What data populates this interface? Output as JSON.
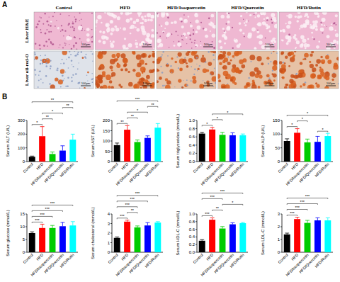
{
  "panel_a": {
    "label": "A",
    "columns": [
      "Control",
      "HFD",
      "HFD/Isoquercetin",
      "HFD/Quercetin",
      "HFD/Rutin"
    ],
    "rows": [
      "Liver H&E",
      "Liver oil-red-O"
    ],
    "scale_bar": "100μm"
  },
  "panel_b_label": "B",
  "chart_data": [
    {
      "type": "bar",
      "y_label": "Serum ALT (U/L)",
      "categories": [
        "Control",
        "HFD",
        "HFD/Isoquercetin",
        "HFD/Quercetin",
        "HFD/Rutin"
      ],
      "values": [
        35,
        185,
        55,
        80,
        160
      ],
      "errors": [
        5,
        70,
        15,
        35,
        40
      ],
      "colors": [
        "#000000",
        "#ff0000",
        "#00cc00",
        "#0000ff",
        "#00ffff"
      ],
      "ylim": [
        0,
        300
      ],
      "yticks": [
        0,
        100,
        200,
        300
      ],
      "significance": [
        {
          "pair": [
            "Control",
            "HFD"
          ],
          "label": "*"
        },
        {
          "pair": [
            "HFD",
            "HFD/Isoquercetin"
          ],
          "label": "**"
        },
        {
          "pair": [
            "HFD",
            "HFD/Quercetin"
          ],
          "label": "*"
        },
        {
          "pair": [
            "HFD/Quercetin",
            "HFD/Rutin"
          ],
          "label": "**"
        },
        {
          "pair": [
            "Control",
            "HFD/Rutin"
          ],
          "label": "**"
        }
      ]
    },
    {
      "type": "bar",
      "y_label": "Serum AST (U/L)",
      "categories": [
        "Control",
        "HFD",
        "HFD/Isoquercetin",
        "HFD/Quercetin",
        "HFD/Rutin"
      ],
      "values": [
        80,
        155,
        95,
        115,
        165
      ],
      "errors": [
        10,
        20,
        10,
        10,
        20
      ],
      "colors": [
        "#000000",
        "#ff0000",
        "#00cc00",
        "#0000ff",
        "#00ffff"
      ],
      "ylim": [
        0,
        200
      ],
      "yticks": [
        0,
        50,
        100,
        150,
        200
      ],
      "significance": [
        {
          "pair": [
            "Control",
            "HFD"
          ],
          "label": "**"
        },
        {
          "pair": [
            "HFD",
            "HFD/Isoquercetin"
          ],
          "label": "**"
        },
        {
          "pair": [
            "HFD",
            "HFD/Quercetin"
          ],
          "label": "*"
        },
        {
          "pair": [
            "HFD/Quercetin",
            "HFD/Rutin"
          ],
          "label": "**"
        },
        {
          "pair": [
            "Control",
            "HFD/Rutin"
          ],
          "label": "***"
        }
      ]
    },
    {
      "type": "bar",
      "y_label": "Serum triglycerides (mmol/L)",
      "categories": [
        "Control",
        "HFD",
        "HFD/Isoquercetin",
        "HFD/Quercetin",
        "HFD/Rutin"
      ],
      "values": [
        0.68,
        0.78,
        0.65,
        0.64,
        0.64
      ],
      "errors": [
        0.03,
        0.05,
        0.06,
        0.06,
        0.03
      ],
      "colors": [
        "#000000",
        "#ff0000",
        "#00cc00",
        "#0000ff",
        "#00ffff"
      ],
      "ylim": [
        0,
        1
      ],
      "yticks": [
        {
          "value": 0,
          "label": "0.0"
        },
        0.2,
        0.4,
        0.6,
        0.8,
        {
          "value": 1,
          "label": "1.0"
        }
      ],
      "significance": [
        {
          "pair": [
            "Control",
            "HFD"
          ],
          "label": "*"
        },
        {
          "pair": [
            "HFD",
            "HFD/Isoquercetin"
          ],
          "label": "*"
        },
        {
          "pair": [
            "HFD",
            "HFD/Rutin"
          ],
          "label": "*"
        }
      ]
    },
    {
      "type": "bar",
      "y_label": "Serum ALP (U/L)",
      "categories": [
        "Control",
        "HFD",
        "HFD/Isoquercetin",
        "HFD/Quercetin",
        "HFD/Rutin"
      ],
      "values": [
        75,
        105,
        70,
        72,
        93
      ],
      "errors": [
        8,
        15,
        12,
        20,
        10
      ],
      "colors": [
        "#000000",
        "#ff0000",
        "#00cc00",
        "#0000ff",
        "#00ffff"
      ],
      "ylim": [
        0,
        150
      ],
      "yticks": [
        0,
        50,
        100,
        150
      ],
      "significance": [
        {
          "pair": [
            "Control",
            "HFD"
          ],
          "label": "*"
        },
        {
          "pair": [
            "HFD",
            "HFD/Isoquercetin"
          ],
          "label": "*"
        },
        {
          "pair": [
            "HFD/Quercetin",
            "HFD/Rutin"
          ],
          "label": "*"
        },
        {
          "pair": [
            "Control",
            "HFD/Rutin"
          ],
          "label": "*"
        }
      ]
    },
    {
      "type": "bar",
      "y_label": "Serum glucose (mmol/L)",
      "categories": [
        "Control",
        "HFD",
        "HFD/Isoquercetin",
        "HFD/Quercetin",
        "HFD/Rutin"
      ],
      "values": [
        7.5,
        9.5,
        9.5,
        10.2,
        10.5
      ],
      "errors": [
        0.5,
        1.5,
        1,
        1.5,
        1.5
      ],
      "colors": [
        "#000000",
        "#ff0000",
        "#00cc00",
        "#0000ff",
        "#00ffff"
      ],
      "ylim": [
        0,
        15
      ],
      "yticks": [
        0,
        5,
        10,
        15
      ],
      "significance": [
        {
          "pair": [
            "Control",
            "HFD"
          ],
          "label": "***"
        },
        {
          "pair": [
            "Control",
            "HFD/Isoquercetin"
          ],
          "label": "***"
        },
        {
          "pair": [
            "Control",
            "HFD/Quercetin"
          ],
          "label": "***"
        },
        {
          "pair": [
            "Control",
            "HFD/Rutin"
          ],
          "label": "***"
        }
      ]
    },
    {
      "type": "bar",
      "y_label": "Serum cholesterol (mmol/L)",
      "categories": [
        "Control",
        "HFD",
        "HFD/Isoquercetin",
        "HFD/Quercetin",
        "HFD/Rutin"
      ],
      "values": [
        1.5,
        3.2,
        2.6,
        2.8,
        3.1
      ],
      "errors": [
        0.1,
        0.15,
        0.15,
        0.3,
        0.1
      ],
      "colors": [
        "#000000",
        "#ff0000",
        "#00cc00",
        "#0000ff",
        "#00ffff"
      ],
      "ylim": [
        0,
        4
      ],
      "yticks": [
        0,
        1,
        2,
        3,
        4
      ],
      "significance": [
        {
          "pair": [
            "Control",
            "HFD"
          ],
          "label": "***"
        },
        {
          "pair": [
            "HFD",
            "HFD/Isoquercetin"
          ],
          "label": "**"
        },
        {
          "pair": [
            "Control",
            "HFD/Isoquercetin"
          ],
          "label": "***"
        },
        {
          "pair": [
            "Control",
            "HFD/Quercetin"
          ],
          "label": "***"
        },
        {
          "pair": [
            "Control",
            "HFD/Rutin"
          ],
          "label": "***"
        }
      ]
    },
    {
      "type": "bar",
      "y_label": "Serum HDL-C (mmol/L)",
      "categories": [
        "Control",
        "HFD",
        "HFD/Isoquercetin",
        "HFD/Quercetin",
        "HFD/Rutin"
      ],
      "values": [
        0.3,
        0.85,
        0.62,
        0.73,
        0.76
      ],
      "errors": [
        0.03,
        0.05,
        0.05,
        0.04,
        0.02
      ],
      "colors": [
        "#000000",
        "#ff0000",
        "#00cc00",
        "#0000ff",
        "#00ffff"
      ],
      "ylim": [
        0,
        1
      ],
      "yticks": [
        {
          "value": 0,
          "label": "0.0"
        },
        0.2,
        0.4,
        0.6,
        0.8,
        {
          "value": 1,
          "label": "1.0"
        }
      ],
      "significance": [
        {
          "pair": [
            "Control",
            "HFD"
          ],
          "label": "***"
        },
        {
          "pair": [
            "HFD",
            "HFD/Isoquercetin"
          ],
          "label": "**"
        },
        {
          "pair": [
            "HFD/Isoquercetin",
            "HFD/Rutin"
          ],
          "label": "*"
        },
        {
          "pair": [
            "Control",
            "HFD/Isoquercetin"
          ],
          "label": "***"
        },
        {
          "pair": [
            "Control",
            "HFD/Rutin"
          ],
          "label": "***"
        }
      ]
    },
    {
      "type": "bar",
      "y_label": "Serum LDL-C (mmol/L)",
      "categories": [
        "Control",
        "HFD",
        "HFD/Isoquercetin",
        "HFD/Quercetin",
        "HFD/Rutin"
      ],
      "values": [
        1.4,
        2.6,
        2.3,
        2.5,
        2.5
      ],
      "errors": [
        0.1,
        0.15,
        0.2,
        0.2,
        0.2
      ],
      "colors": [
        "#000000",
        "#ff0000",
        "#00cc00",
        "#0000ff",
        "#00ffff"
      ],
      "ylim": [
        0,
        3
      ],
      "yticks": [
        0,
        1,
        2,
        3
      ],
      "significance": [
        {
          "pair": [
            "Control",
            "HFD"
          ],
          "label": "***"
        },
        {
          "pair": [
            "Control",
            "HFD/Isoquercetin"
          ],
          "label": "***"
        },
        {
          "pair": [
            "Control",
            "HFD/Quercetin"
          ],
          "label": "***"
        },
        {
          "pair": [
            "Control",
            "HFD/Rutin"
          ],
          "label": "***"
        }
      ]
    }
  ]
}
